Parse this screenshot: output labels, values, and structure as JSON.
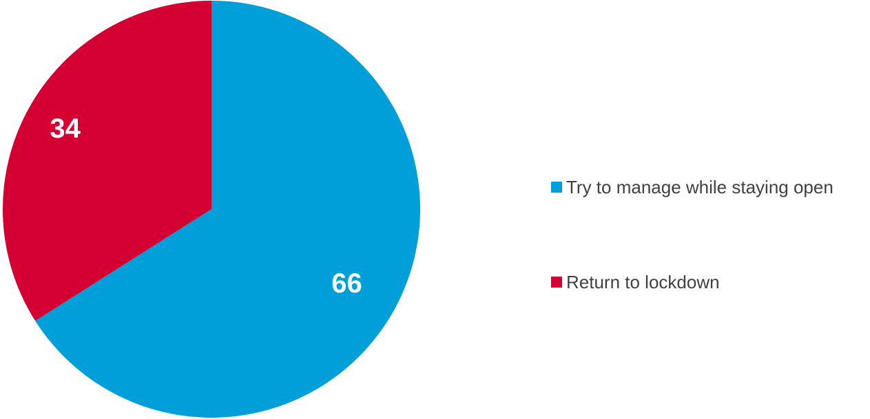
{
  "chart_data": {
    "type": "pie",
    "title": "",
    "start_angle_deg": 0,
    "direction": "clockwise",
    "slices": [
      {
        "label": "Try to manage while staying open",
        "value": 66,
        "color": "#009FDA"
      },
      {
        "label": "Return to lockdown",
        "value": 34,
        "color": "#D50032"
      }
    ],
    "data_labels": [
      "66",
      "34"
    ],
    "legend_position": "right",
    "label_color": "#FFFFFF"
  }
}
